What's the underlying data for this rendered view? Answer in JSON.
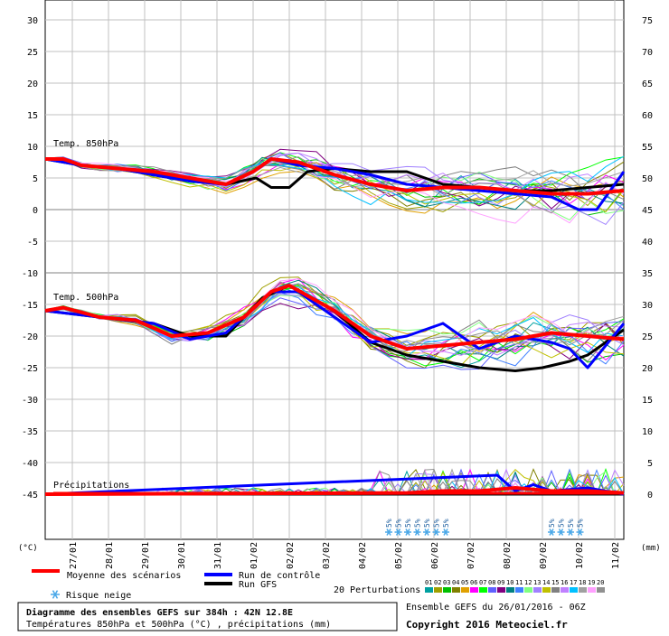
{
  "chart_data": {
    "type": "line",
    "title": "Diagramme des ensembles GEFS sur 384h : 42N 12.8E",
    "subtitle": "Températures 850hPa et 500hPa (°C) , précipitations (mm)",
    "left_axis_unit": "(°C)",
    "right_axis_unit": "(mm)",
    "left_ticks": [
      30,
      25,
      20,
      15,
      10,
      5,
      0,
      -5,
      -10,
      -15,
      -20,
      -25,
      -30,
      -35,
      -40,
      -45
    ],
    "right_ticks": [
      75,
      70,
      65,
      60,
      55,
      50,
      45,
      40,
      35,
      30,
      25,
      20,
      15,
      10,
      5,
      0
    ],
    "x_labels": [
      "27/01",
      "28/01",
      "29/01",
      "30/01",
      "31/01",
      "01/02",
      "02/02",
      "03/02",
      "04/02",
      "05/02",
      "06/02",
      "07/02",
      "08/02",
      "09/02",
      "10/02",
      "11/02"
    ],
    "x_range_hours": [
      0,
      384
    ],
    "grid": true,
    "section_labels": {
      "t850": "Temp. 850hPa",
      "t500": "Temp. 500hPa",
      "precip": "Précipitations"
    },
    "series": [
      {
        "name": "Moyenne des scénarios",
        "color": "#ff0000",
        "t850": {
          "h": [
            0,
            12,
            24,
            48,
            72,
            96,
            120,
            138,
            150,
            168,
            192,
            216,
            240,
            264,
            288,
            312,
            336,
            360,
            384
          ],
          "v": [
            8,
            8,
            7,
            6.5,
            6,
            5,
            4,
            6,
            8,
            7.5,
            5.5,
            4,
            3,
            3.5,
            3.5,
            3,
            2.5,
            2.5,
            3
          ]
        },
        "t500": {
          "h": [
            0,
            12,
            36,
            60,
            84,
            108,
            132,
            150,
            162,
            192,
            216,
            240,
            264,
            288,
            312,
            336,
            360,
            384
          ],
          "v": [
            -16,
            -15.5,
            -17,
            -17.5,
            -20,
            -19.5,
            -17,
            -13,
            -12,
            -16,
            -20,
            -22,
            -21.5,
            -21,
            -20.5,
            -19.5,
            -20,
            -20.5
          ]
        },
        "precip": {
          "h": [
            0,
            240,
            264,
            288,
            312,
            336,
            360,
            384
          ],
          "v": [
            0,
            0.2,
            0.5,
            0.5,
            1,
            0.5,
            0.5,
            0.2
          ]
        }
      },
      {
        "name": "Run de contrôle",
        "color": "#0000ff",
        "t850": {
          "h": [
            0,
            24,
            48,
            72,
            96,
            120,
            138,
            150,
            168,
            192,
            216,
            240,
            264,
            288,
            312,
            336,
            354,
            366,
            384
          ],
          "v": [
            8,
            7,
            6.5,
            5.5,
            4.5,
            4,
            6,
            8,
            7,
            6.5,
            5.5,
            4,
            3.5,
            3,
            2.5,
            2,
            0,
            0,
            6
          ]
        },
        "t500": {
          "h": [
            0,
            36,
            72,
            96,
            120,
            150,
            168,
            192,
            216,
            240,
            252,
            264,
            276,
            288,
            312,
            336,
            348,
            360,
            384
          ],
          "v": [
            -16,
            -17,
            -18,
            -20.5,
            -19.5,
            -13,
            -13,
            -17,
            -21,
            -20,
            -19,
            -18,
            -20,
            -22,
            -20,
            -21,
            -22,
            -25,
            -18
          ]
        },
        "precip": {
          "h": [
            0,
            300,
            312,
            324,
            336,
            360,
            384
          ],
          "v": [
            0,
            3,
            0.5,
            1.5,
            0.5,
            1,
            0
          ]
        }
      },
      {
        "name": "Run GFS",
        "color": "#000000",
        "t850": {
          "h": [
            0,
            24,
            48,
            72,
            96,
            120,
            140,
            150,
            162,
            174,
            192,
            216,
            240,
            264,
            288,
            312,
            336,
            360,
            384
          ],
          "v": [
            8,
            7,
            6.5,
            5.5,
            4.5,
            4,
            5,
            3.5,
            3.5,
            6,
            6.5,
            6,
            6,
            4,
            3.5,
            3,
            3,
            3.5,
            4
          ]
        },
        "t500": {
          "h": [
            0,
            36,
            72,
            96,
            120,
            144,
            162,
            192,
            216,
            240,
            264,
            288,
            312,
            330,
            348,
            360,
            372,
            384
          ],
          "v": [
            -16,
            -17,
            -18,
            -20,
            -20,
            -14,
            -12,
            -16,
            -21,
            -23,
            -24,
            -25,
            -25.5,
            -25,
            -24,
            -23,
            -21,
            -19
          ]
        },
        "precip": {
          "h": [
            0,
            384
          ],
          "v": [
            0,
            0
          ]
        }
      }
    ],
    "perturbation_colors": [
      "#00a0a0",
      "#a0a000",
      "#00c000",
      "#808000",
      "#e0a000",
      "#ff00ff",
      "#00ff00",
      "#6060ff",
      "#800080",
      "#008080",
      "#4080ff",
      "#80ff80",
      "#a080ff",
      "#c0c000",
      "#808080",
      "#c080ff",
      "#00c0ff",
      "#a0a0a0",
      "#ffa0ff",
      "#909090"
    ],
    "perturbation_labels": [
      "01",
      "02",
      "03",
      "04",
      "05",
      "06",
      "07",
      "08",
      "09",
      "10",
      "11",
      "12",
      "13",
      "14",
      "15",
      "16",
      "17",
      "18",
      "19",
      "20"
    ]
  },
  "snow_risk": {
    "label": "5%",
    "groups": [
      {
        "start_h": 228,
        "count": 7
      },
      {
        "start_h": 336,
        "count": 4
      }
    ]
  },
  "legend": {
    "mean": "Moyenne des scénarios",
    "control": "Run de contrôle",
    "gfs": "Run GFS",
    "snow": "Risque neige",
    "perturbations": "20 Perturbations"
  },
  "info": {
    "ensemble": "Ensemble GEFS du 26/01/2016 - 06Z",
    "copyright": "Copyright 2016 Meteociel.fr"
  },
  "colors": {
    "grid": "#c0c0c0",
    "frame": "#000000",
    "mean": "#ff0000",
    "control": "#0000ff",
    "gfs": "#000000",
    "snow": "#4aa8e8"
  }
}
